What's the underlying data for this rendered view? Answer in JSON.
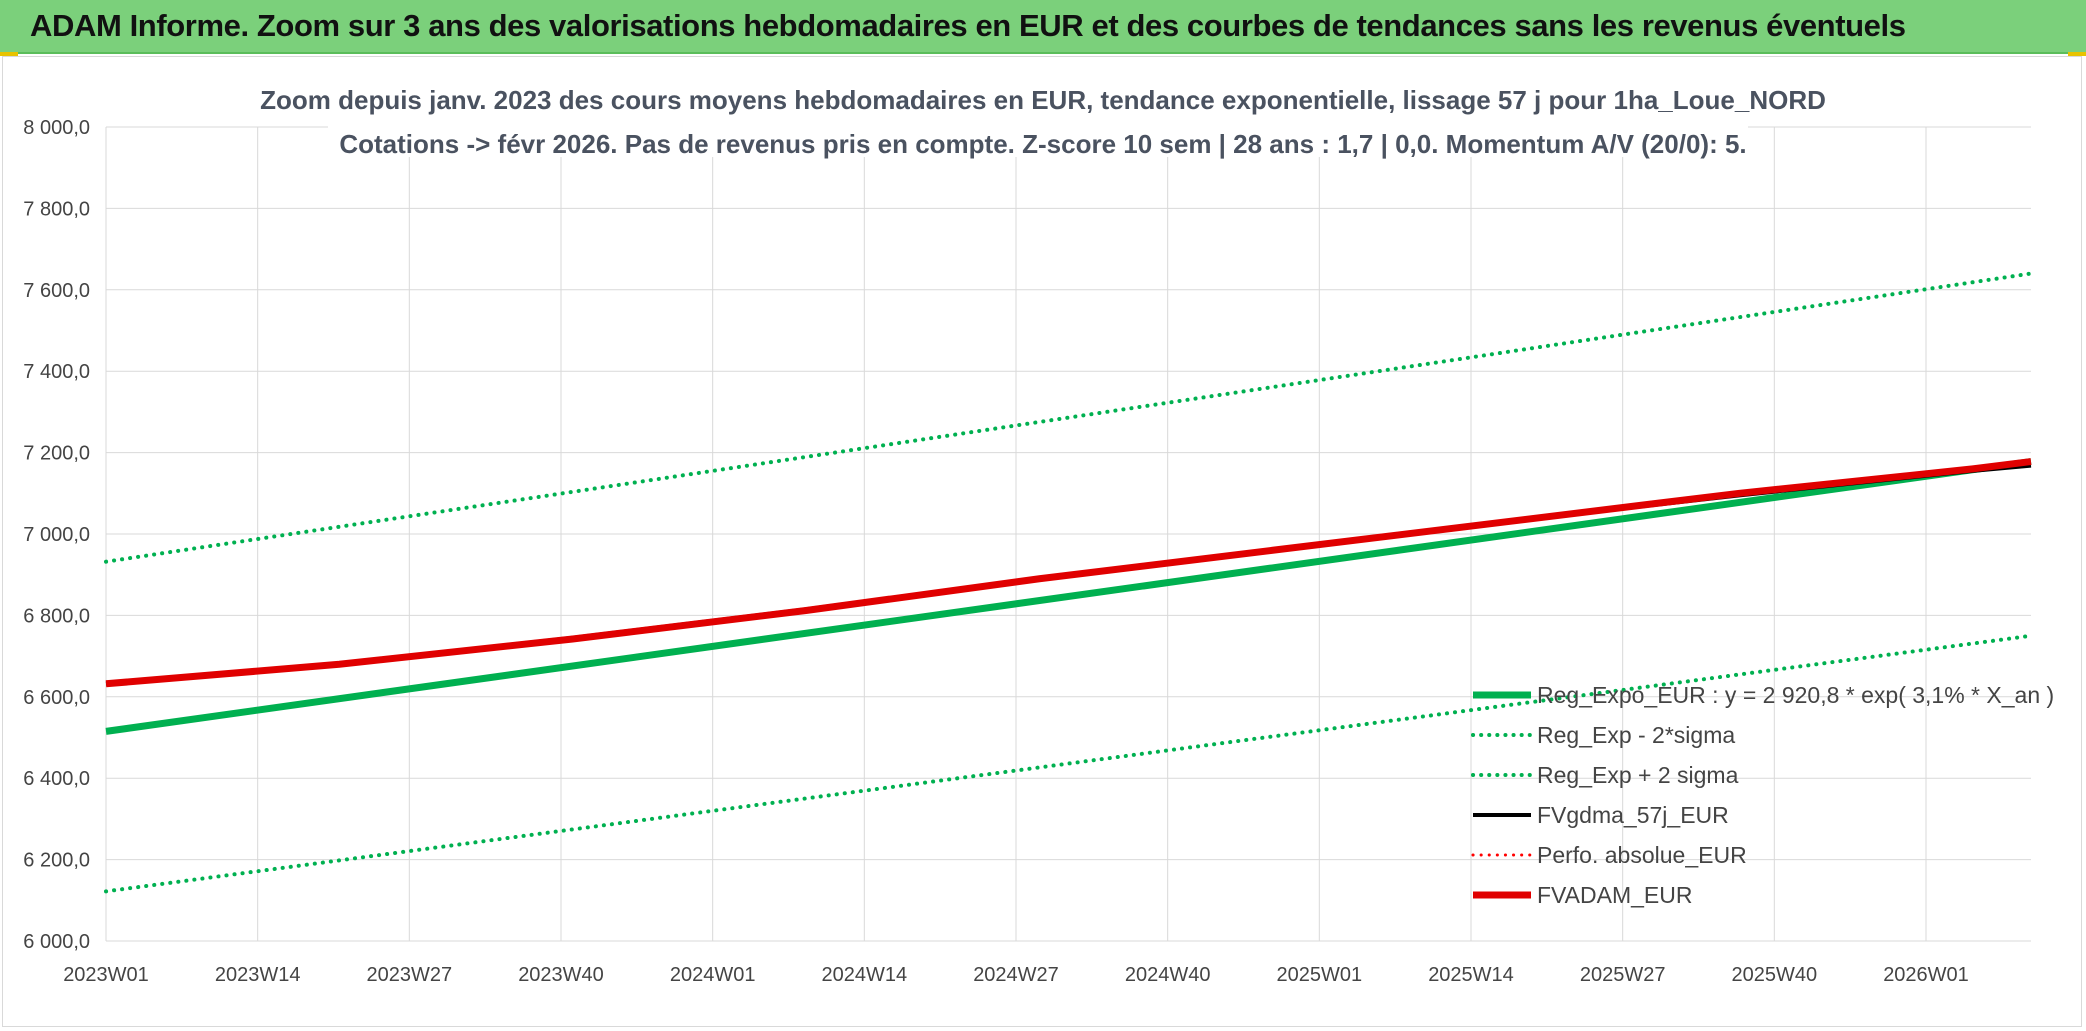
{
  "header": {
    "title": "ADAM Informe. Zoom sur 3 ans des valorisations hebdomadaires en EUR et des courbes de tendances sans les revenus éventuels",
    "background": "#7bd07b"
  },
  "chart_data": {
    "type": "line",
    "title": "Zoom depuis janv. 2023 des cours moyens hebdomadaires en EUR, tendance exponentielle, lissage 57 j pour 1ha_Loue_NORD",
    "subtitle": "Cotations -> févr 2026. Pas de revenus pris en compte. Z-score 10 sem | 28 ans : 1,7 | 0,0. Momentum A/V (20/0): 5.",
    "x_tick_labels": [
      "2023W01",
      "2023W14",
      "2023W27",
      "2023W40",
      "2024W01",
      "2024W14",
      "2024W27",
      "2024W40",
      "2025W01",
      "2025W14",
      "2025W27",
      "2025W40",
      "2026W01"
    ],
    "x_range": [
      0,
      165
    ],
    "y_tick_labels": [
      "6 000,0",
      "6 200,0",
      "6 400,0",
      "6 600,0",
      "6 800,0",
      "7 000,0",
      "7 200,0",
      "7 400,0",
      "7 600,0",
      "7 800,0",
      "8 000,0"
    ],
    "ylim": [
      6000,
      8000
    ],
    "grid": true,
    "legend_position": "bottom-right",
    "series": [
      {
        "name": "Reg_Expo_EUR : y = 2 920,8 * exp( 3,1% *  X_an )",
        "color": "#00b050",
        "style": "solid",
        "width": 7,
        "x": [
          0,
          165
        ],
        "values": [
          6515,
          7178
        ]
      },
      {
        "name": "Reg_Exp - 2*sigma",
        "color": "#00b050",
        "style": "dotted",
        "width": 4,
        "x": [
          0,
          165
        ],
        "values": [
          6122,
          6750
        ]
      },
      {
        "name": "Reg_Exp + 2 sigma",
        "color": "#00b050",
        "style": "dotted",
        "width": 4,
        "x": [
          0,
          165
        ],
        "values": [
          6932,
          7640
        ]
      },
      {
        "name": "FVgdma_57j_EUR",
        "color": "#000000",
        "style": "solid",
        "width": 4,
        "x": [
          0,
          20,
          40,
          60,
          80,
          100,
          120,
          140,
          160,
          165
        ],
        "values": [
          6632,
          6682,
          6745,
          6815,
          6892,
          6962,
          7030,
          7095,
          7155,
          7168
        ]
      },
      {
        "name": "Perfo. absolue_EUR",
        "color": "#ff0000",
        "style": "dotted",
        "width": 3,
        "x": [],
        "values": []
      },
      {
        "name": "FVADAM_EUR",
        "color": "#e00000",
        "style": "solid",
        "width": 7,
        "x": [
          0,
          20,
          40,
          60,
          80,
          100,
          120,
          140,
          160,
          165
        ],
        "values": [
          6632,
          6680,
          6742,
          6812,
          6890,
          6960,
          7030,
          7100,
          7160,
          7178
        ]
      }
    ]
  }
}
